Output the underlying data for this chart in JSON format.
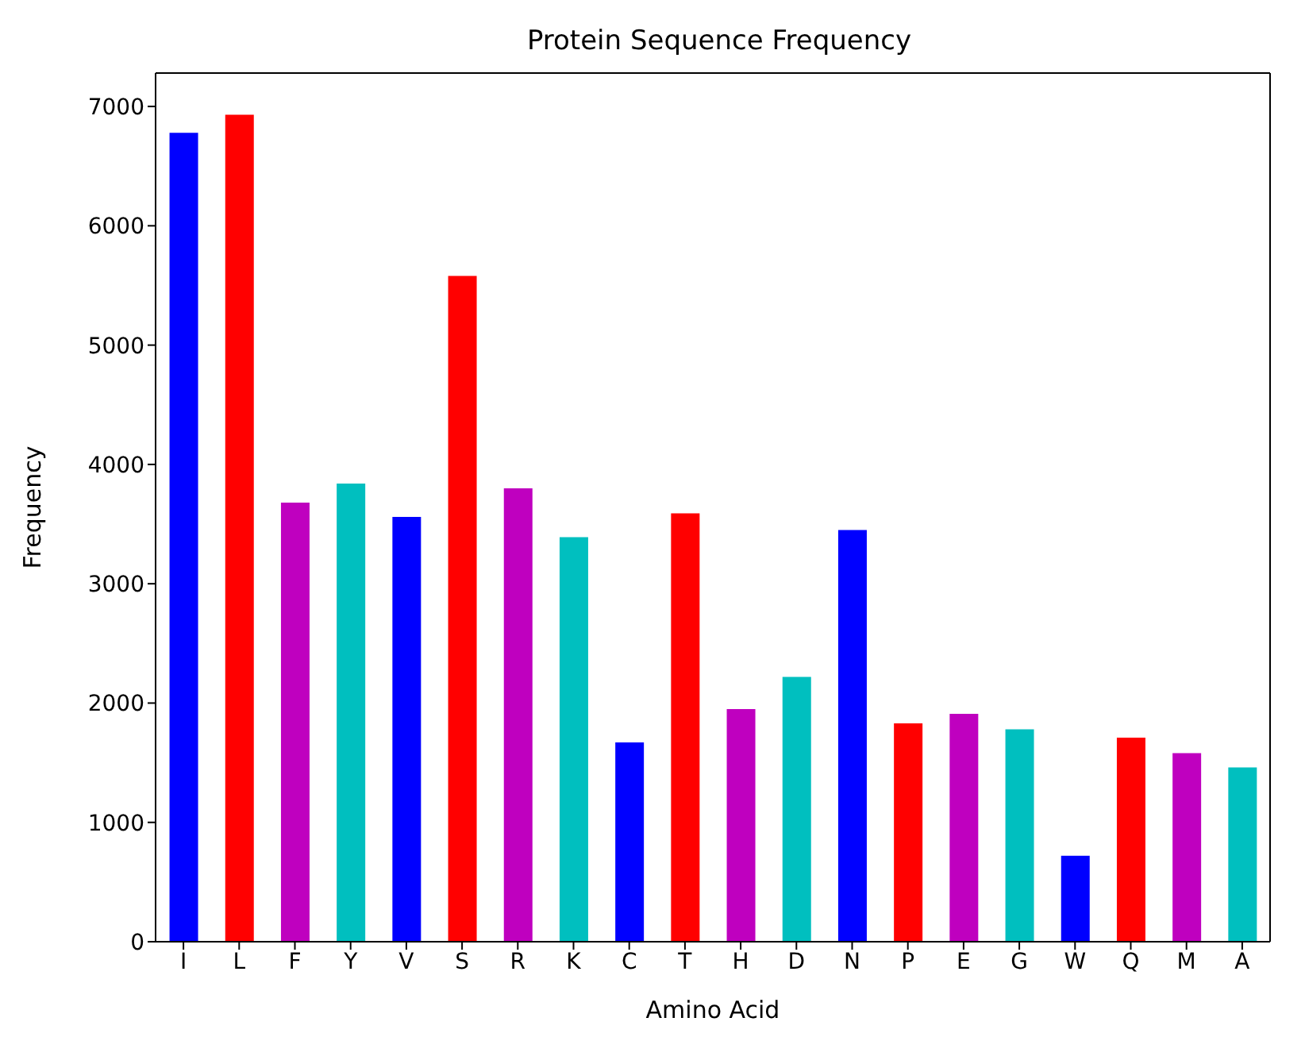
{
  "chart_data": {
    "type": "bar",
    "title": "Protein Sequence Frequency",
    "xlabel": "Amino Acid",
    "ylabel": "Frequency",
    "categories": [
      "I",
      "L",
      "F",
      "Y",
      "V",
      "S",
      "R",
      "K",
      "C",
      "T",
      "H",
      "D",
      "N",
      "P",
      "E",
      "G",
      "W",
      "Q",
      "M",
      "A"
    ],
    "values": [
      6780,
      6930,
      3680,
      3840,
      3560,
      5580,
      3800,
      3390,
      1670,
      3590,
      1950,
      2220,
      3450,
      1830,
      1910,
      1780,
      720,
      1710,
      1580,
      1460
    ],
    "colors": [
      "#0000ff",
      "#ff0000",
      "#bf00bf",
      "#00bfbf",
      "#0000ff",
      "#ff0000",
      "#bf00bf",
      "#00bfbf",
      "#0000ff",
      "#ff0000",
      "#bf00bf",
      "#00bfbf",
      "#0000ff",
      "#ff0000",
      "#bf00bf",
      "#00bfbf",
      "#0000ff",
      "#ff0000",
      "#bf00bf",
      "#00bfbf"
    ],
    "ylim": [
      0,
      7280
    ],
    "yticks": [
      0,
      1000,
      2000,
      3000,
      4000,
      5000,
      6000,
      7000
    ],
    "grid": false
  }
}
